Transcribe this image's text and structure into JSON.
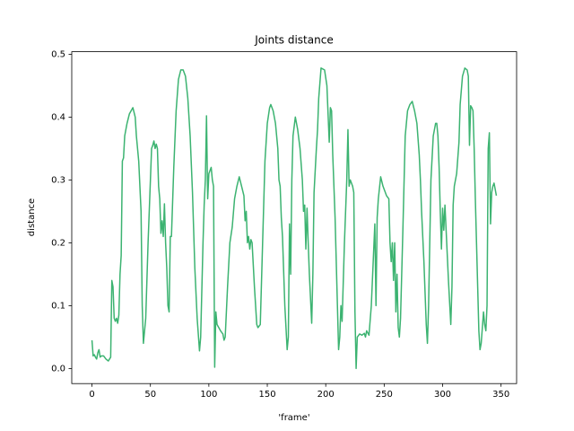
{
  "chart_data": {
    "type": "line",
    "title": "Joints distance",
    "xlabel": "'frame'",
    "ylabel": "distance",
    "xlim": [
      -17.3,
      363.3
    ],
    "ylim": [
      -0.024,
      0.504
    ],
    "xticks": [
      0,
      50,
      100,
      150,
      200,
      250,
      300,
      350
    ],
    "yticks": [
      {
        "value": 0,
        "label": "0.0"
      },
      {
        "value": 0.1,
        "label": "0.1"
      },
      {
        "value": 0.2,
        "label": "0.2"
      },
      {
        "value": 0.3,
        "label": "0.3"
      },
      {
        "value": 0.4,
        "label": "0.4"
      },
      {
        "value": 0.5,
        "label": "0.5"
      }
    ],
    "grid": false,
    "x": [
      0,
      1,
      2,
      3,
      4,
      5,
      6,
      7,
      8,
      10,
      12,
      14,
      16,
      17,
      18,
      19,
      20,
      21,
      22,
      23,
      24,
      25,
      26,
      27,
      28,
      30,
      32,
      35,
      37,
      38,
      40,
      42,
      43,
      44,
      46,
      48,
      50,
      51,
      52,
      53,
      54,
      55,
      56,
      57,
      58,
      59,
      60,
      61,
      62,
      63,
      64,
      65,
      66,
      67,
      68,
      70,
      72,
      74,
      76,
      78,
      80,
      82,
      84,
      86,
      88,
      90,
      92,
      93,
      95,
      96,
      97,
      98,
      99,
      100,
      101,
      102,
      103,
      104,
      105,
      106,
      107,
      110,
      112,
      113,
      114,
      116,
      118,
      120,
      122,
      124,
      126,
      128,
      130,
      131,
      132,
      133,
      134,
      135,
      136,
      137,
      139,
      141,
      142,
      144,
      146,
      148,
      150,
      152,
      153,
      155,
      157,
      159,
      160,
      161,
      162,
      163,
      165,
      167,
      168,
      169,
      170,
      171,
      172,
      174,
      176,
      178,
      180,
      181,
      182,
      183,
      184,
      185,
      186,
      188,
      189,
      190,
      192,
      193,
      194,
      196,
      199,
      201,
      203,
      204,
      205,
      206,
      208,
      210,
      211,
      212,
      213,
      214,
      216,
      218,
      219,
      220,
      221,
      223,
      224,
      225,
      226,
      227,
      229,
      231,
      233,
      234,
      235,
      237,
      239,
      242,
      243,
      244,
      245,
      247,
      249,
      252,
      254,
      255,
      256,
      257,
      258,
      259,
      260,
      261,
      262,
      263,
      264,
      266,
      268,
      270,
      272,
      274,
      276,
      278,
      280,
      281,
      282,
      284,
      286,
      287,
      288,
      289,
      290,
      292,
      294,
      295,
      296,
      297,
      298,
      299,
      300,
      301,
      302,
      303,
      305,
      307,
      308,
      309,
      310,
      312,
      314,
      315,
      317,
      319,
      321,
      322,
      323,
      324,
      325,
      326,
      327,
      328,
      329,
      330,
      331,
      332,
      333,
      335,
      336,
      337,
      338,
      339,
      340,
      341,
      342,
      343,
      344,
      346
    ],
    "series": [
      {
        "name": "distance",
        "color": "#3cb371",
        "values": [
          0.045,
          0.02,
          0.022,
          0.018,
          0.015,
          0.025,
          0.03,
          0.018,
          0.02,
          0.02,
          0.015,
          0.012,
          0.018,
          0.14,
          0.13,
          0.08,
          0.075,
          0.08,
          0.072,
          0.085,
          0.15,
          0.18,
          0.33,
          0.335,
          0.37,
          0.39,
          0.405,
          0.415,
          0.4,
          0.37,
          0.33,
          0.25,
          0.1,
          0.04,
          0.08,
          0.2,
          0.3,
          0.35,
          0.355,
          0.362,
          0.35,
          0.357,
          0.35,
          0.29,
          0.27,
          0.215,
          0.235,
          0.21,
          0.262,
          0.2,
          0.16,
          0.1,
          0.09,
          0.21,
          0.21,
          0.32,
          0.41,
          0.46,
          0.475,
          0.475,
          0.465,
          0.43,
          0.37,
          0.28,
          0.16,
          0.08,
          0.028,
          0.05,
          0.2,
          0.26,
          0.3,
          0.402,
          0.27,
          0.31,
          0.315,
          0.32,
          0.3,
          0.29,
          0.002,
          0.09,
          0.07,
          0.06,
          0.055,
          0.045,
          0.05,
          0.13,
          0.2,
          0.225,
          0.27,
          0.29,
          0.305,
          0.29,
          0.275,
          0.235,
          0.25,
          0.2,
          0.21,
          0.19,
          0.205,
          0.2,
          0.13,
          0.07,
          0.065,
          0.07,
          0.2,
          0.33,
          0.39,
          0.415,
          0.42,
          0.41,
          0.39,
          0.35,
          0.3,
          0.29,
          0.24,
          0.21,
          0.1,
          0.03,
          0.05,
          0.23,
          0.15,
          0.3,
          0.37,
          0.4,
          0.38,
          0.35,
          0.3,
          0.25,
          0.26,
          0.19,
          0.255,
          0.2,
          0.15,
          0.072,
          0.15,
          0.28,
          0.35,
          0.38,
          0.43,
          0.478,
          0.475,
          0.45,
          0.36,
          0.415,
          0.41,
          0.34,
          0.24,
          0.1,
          0.03,
          0.05,
          0.1,
          0.075,
          0.2,
          0.3,
          0.38,
          0.29,
          0.3,
          0.29,
          0.28,
          0.09,
          0.0,
          0.05,
          0.055,
          0.053,
          0.056,
          0.05,
          0.06,
          0.053,
          0.1,
          0.23,
          0.1,
          0.24,
          0.27,
          0.305,
          0.29,
          0.275,
          0.27,
          0.2,
          0.17,
          0.2,
          0.14,
          0.2,
          0.09,
          0.15,
          0.065,
          0.05,
          0.08,
          0.22,
          0.37,
          0.41,
          0.42,
          0.425,
          0.41,
          0.39,
          0.34,
          0.3,
          0.25,
          0.17,
          0.07,
          0.04,
          0.1,
          0.2,
          0.3,
          0.37,
          0.39,
          0.39,
          0.37,
          0.32,
          0.25,
          0.19,
          0.255,
          0.22,
          0.26,
          0.22,
          0.14,
          0.07,
          0.13,
          0.26,
          0.29,
          0.31,
          0.36,
          0.42,
          0.465,
          0.478,
          0.475,
          0.465,
          0.355,
          0.418,
          0.415,
          0.41,
          0.35,
          0.27,
          0.2,
          0.13,
          0.06,
          0.03,
          0.04,
          0.09,
          0.07,
          0.06,
          0.1,
          0.35,
          0.375,
          0.23,
          0.28,
          0.29,
          0.295,
          0.275
        ]
      }
    ]
  }
}
